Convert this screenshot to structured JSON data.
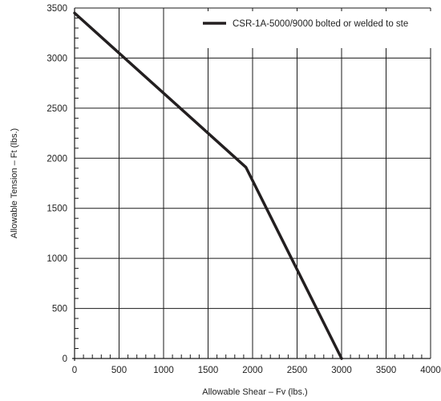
{
  "chart_data": {
    "type": "line",
    "title": "",
    "xlabel": "Allowable Shear – Fv (lbs.)",
    "ylabel": "Allowable Tension – Ft (lbs.)",
    "xlim": [
      0,
      4000
    ],
    "ylim": [
      0,
      3500
    ],
    "xticks": [
      0,
      500,
      1000,
      1500,
      2000,
      2500,
      3000,
      3500,
      4000
    ],
    "yticks": [
      0,
      500,
      1000,
      1500,
      2000,
      2500,
      3000,
      3500
    ],
    "grid": true,
    "legend_position": "top-right",
    "series": [
      {
        "name": "CSR-1A-5000/9000 bolted or welded to ste",
        "color": "#231f20",
        "x": [
          0,
          1925,
          3000
        ],
        "y": [
          3450,
          1910,
          0
        ]
      }
    ]
  }
}
